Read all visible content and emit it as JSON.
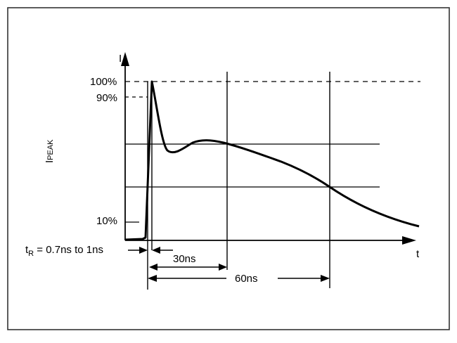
{
  "figure": {
    "y_axis_label": "I",
    "x_axis_label": "t",
    "side_label_main": "I",
    "side_label_sub": "PEAK",
    "level_100": "100%",
    "level_90": "90%",
    "level_10": "10%",
    "rise_label_main": "t",
    "rise_label_sub": "R",
    "rise_label_rest": " = 0.7ns to 1ns",
    "interval_30": "30ns",
    "interval_60": "60ns",
    "colors": {
      "ink": "#000000",
      "background": "#ffffff",
      "frame": "#333333"
    }
  }
}
